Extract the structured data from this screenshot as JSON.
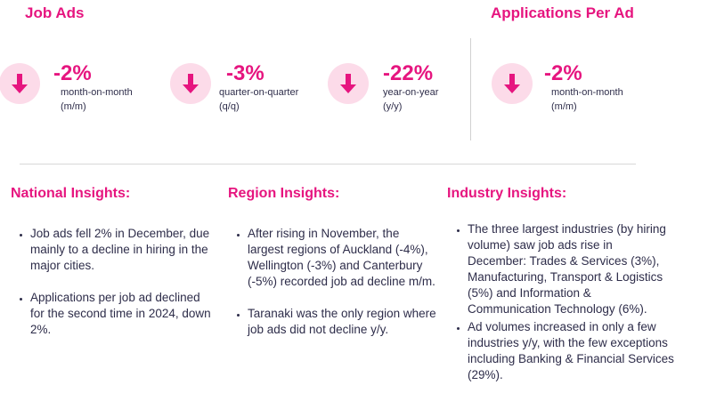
{
  "job_ads": {
    "title": "Job Ads",
    "stats": [
      {
        "value": "-2%",
        "line1": "month-on-month",
        "line2": "(m/m)",
        "icon": "down-arrow-icon"
      },
      {
        "value": "-3%",
        "line1": "quarter-on-quarter",
        "line2": "(q/q)",
        "icon": "down-arrow-icon"
      },
      {
        "value": "-22%",
        "line1": "year-on-year",
        "line2": "(y/y)",
        "icon": "down-arrow-icon"
      }
    ]
  },
  "applications": {
    "title": "Applications Per Ad",
    "stat": {
      "value": "-2%",
      "line1": "month-on-month",
      "line2": "(m/m)",
      "icon": "down-arrow-icon"
    }
  },
  "colors": {
    "accent": "#e6157f",
    "circle": "#fcdbe9",
    "text": "#2e2d4a"
  },
  "national": {
    "title": "National Insights:",
    "bullets": [
      "Job ads fell 2% in December, due mainly to a decline in hiring in the major cities.",
      "Applications per job ad declined for the second time in 2024, down 2%."
    ]
  },
  "region": {
    "title": "Region Insights:",
    "bullets": [
      "After rising in November, the largest regions of Auckland (-4%), Wellington (-3%) and Canterbury (-5%) recorded job ad decline m/m.",
      "Taranaki was the only region where job ads did not decline y/y."
    ]
  },
  "industry": {
    "title": "Industry Insights:",
    "bullets": [
      "The three largest industries (by hiring volume) saw job ads rise in December: Trades & Services (3%), Manufacturing, Transport & Logistics (5%) and Information & Communication Technology (6%).",
      "Ad volumes increased in only a few industries y/y, with the few exceptions including Banking & Financial Services (29%)."
    ]
  }
}
